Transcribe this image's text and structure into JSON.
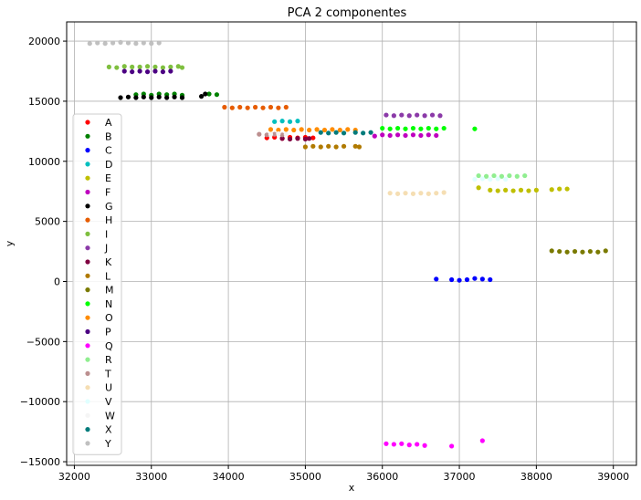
{
  "chart_data": {
    "type": "scatter",
    "title": "PCA 2 componentes",
    "xlabel": "x",
    "ylabel": "y",
    "xlim": [
      31900,
      39300
    ],
    "ylim": [
      -15300,
      21600
    ],
    "xticks": [
      32000,
      33000,
      34000,
      35000,
      36000,
      37000,
      38000,
      39000
    ],
    "yticks": [
      -15000,
      -10000,
      -5000,
      0,
      5000,
      10000,
      15000,
      20000
    ],
    "xtick_labels": [
      "32000",
      "33000",
      "34000",
      "35000",
      "36000",
      "37000",
      "38000",
      "39000"
    ],
    "ytick_labels": [
      "−15000",
      "−10000",
      "−5000",
      "0",
      "5000",
      "10000",
      "15000",
      "20000"
    ],
    "grid": true,
    "legend_position": "left",
    "series": [
      {
        "name": "A",
        "color": "#ff0000",
        "x": [
          34500,
          34600,
          34700,
          34800,
          34900,
          35000,
          35100
        ],
        "y": [
          11950,
          12000,
          11900,
          12000,
          11950,
          12000,
          11950
        ]
      },
      {
        "name": "B",
        "color": "#008000",
        "x": [
          32800,
          32900,
          33000,
          33100,
          33200,
          33300,
          33400,
          33750,
          33850
        ],
        "y": [
          15550,
          15600,
          15500,
          15600,
          15550,
          15600,
          15500,
          15600,
          15550
        ]
      },
      {
        "name": "C",
        "color": "#0000ff",
        "x": [
          36700,
          36900,
          37000,
          37100,
          37200,
          37300,
          37400
        ],
        "y": [
          200,
          150,
          100,
          150,
          250,
          200,
          150
        ]
      },
      {
        "name": "D",
        "color": "#00bfbf",
        "x": [
          34600,
          34700,
          34800,
          34900
        ],
        "y": [
          13300,
          13350,
          13300,
          13350
        ]
      },
      {
        "name": "E",
        "color": "#bfbf00",
        "x": [
          37250,
          37400,
          37500,
          37600,
          37700,
          37800,
          37900,
          38000,
          38200,
          38300,
          38400
        ],
        "y": [
          7800,
          7600,
          7550,
          7600,
          7550,
          7600,
          7550,
          7600,
          7650,
          7700,
          7700
        ]
      },
      {
        "name": "F",
        "color": "#bf00bf",
        "x": [
          35900,
          36000,
          36100,
          36200,
          36300,
          36400,
          36500,
          36600,
          36700
        ],
        "y": [
          12100,
          12200,
          12150,
          12200,
          12150,
          12200,
          12150,
          12200,
          12150
        ]
      },
      {
        "name": "G",
        "color": "#000000",
        "x": [
          32600,
          32700,
          32800,
          32900,
          33000,
          33100,
          33200,
          33300,
          33400,
          33650,
          33700
        ],
        "y": [
          15300,
          15350,
          15300,
          15350,
          15300,
          15350,
          15300,
          15350,
          15300,
          15400,
          15600
        ]
      },
      {
        "name": "H",
        "color": "#e65c00",
        "x": [
          33950,
          34050,
          34150,
          34250,
          34350,
          34450,
          34550,
          34650,
          34750
        ],
        "y": [
          14500,
          14450,
          14500,
          14450,
          14500,
          14450,
          14500,
          14450,
          14500
        ]
      },
      {
        "name": "I",
        "color": "#7fbf3f",
        "x": [
          32450,
          32550,
          32650,
          32750,
          32850,
          32950,
          33050,
          33150,
          33250,
          33350,
          33400
        ],
        "y": [
          17850,
          17800,
          17900,
          17850,
          17850,
          17900,
          17850,
          17800,
          17850,
          17900,
          17800
        ]
      },
      {
        "name": "J",
        "color": "#8b3aa8",
        "x": [
          36050,
          36150,
          36250,
          36350,
          36450,
          36550,
          36650,
          36750
        ],
        "y": [
          13850,
          13800,
          13850,
          13800,
          13850,
          13800,
          13850,
          13800
        ]
      },
      {
        "name": "K",
        "color": "#800040",
        "x": [
          34700,
          34800,
          34900,
          35000,
          35050
        ],
        "y": [
          11900,
          11850,
          11900,
          11850,
          11900
        ]
      },
      {
        "name": "L",
        "color": "#b07a00",
        "x": [
          35000,
          35100,
          35200,
          35300,
          35400,
          35500,
          35650,
          35700
        ],
        "y": [
          11200,
          11250,
          11200,
          11250,
          11200,
          11250,
          11250,
          11200
        ]
      },
      {
        "name": "M",
        "color": "#7a7a00",
        "x": [
          38200,
          38300,
          38400,
          38500,
          38600,
          38700,
          38800,
          38900
        ],
        "y": [
          2550,
          2500,
          2450,
          2500,
          2450,
          2500,
          2450,
          2550
        ]
      },
      {
        "name": "N",
        "color": "#00ff00",
        "x": [
          36000,
          36100,
          36200,
          36300,
          36400,
          36500,
          36600,
          36700,
          36800,
          37200
        ],
        "y": [
          12750,
          12700,
          12750,
          12700,
          12750,
          12700,
          12750,
          12700,
          12750,
          12700
        ]
      },
      {
        "name": "O",
        "color": "#ff8c00",
        "x": [
          34550,
          34650,
          34750,
          34850,
          34950,
          35050,
          35150,
          35250,
          35350,
          35450,
          35550,
          35650
        ],
        "y": [
          12650,
          12600,
          12650,
          12600,
          12650,
          12600,
          12650,
          12600,
          12650,
          12600,
          12650,
          12600
        ]
      },
      {
        "name": "P",
        "color": "#4b0082",
        "x": [
          32650,
          32750,
          32850,
          32950,
          33050,
          33150,
          33250
        ],
        "y": [
          17500,
          17450,
          17500,
          17450,
          17500,
          17450,
          17500
        ]
      },
      {
        "name": "Q",
        "color": "#ff00ff",
        "x": [
          36050,
          36150,
          36250,
          36350,
          36450,
          36550,
          36900,
          37300
        ],
        "y": [
          -13500,
          -13550,
          -13500,
          -13600,
          -13550,
          -13650,
          -13700,
          -13250
        ]
      },
      {
        "name": "R",
        "color": "#90ee90",
        "x": [
          37250,
          37350,
          37450,
          37550,
          37650,
          37750,
          37850
        ],
        "y": [
          8800,
          8750,
          8800,
          8750,
          8800,
          8750,
          8800
        ]
      },
      {
        "name": "T",
        "color": "#bc8f8f",
        "x": [
          34400,
          34500,
          34600,
          34700
        ],
        "y": [
          12250,
          12200,
          12250,
          12200
        ]
      },
      {
        "name": "U",
        "color": "#f5deb3",
        "x": [
          36100,
          36200,
          36300,
          36400,
          36500,
          36600,
          36700,
          36800
        ],
        "y": [
          7350,
          7300,
          7350,
          7300,
          7350,
          7300,
          7350,
          7400
        ]
      },
      {
        "name": "V",
        "color": "#e0ffff",
        "x": [
          37200,
          37300,
          37400,
          37500,
          37600
        ],
        "y": [
          8500,
          8550,
          8500,
          8550,
          8500
        ]
      },
      {
        "name": "W",
        "color": "#f5f5f5",
        "x": [
          34550,
          34650,
          34750
        ],
        "y": [
          12250,
          12300,
          12250
        ]
      },
      {
        "name": "X",
        "color": "#007b7b",
        "x": [
          35200,
          35300,
          35400,
          35500,
          35650,
          35750,
          35850
        ],
        "y": [
          12400,
          12350,
          12400,
          12350,
          12400,
          12350,
          12400
        ]
      },
      {
        "name": "Y",
        "color": "#c0c0c0",
        "x": [
          32200,
          32300,
          32400,
          32500,
          32600,
          32700,
          32800,
          32900,
          33000,
          33100
        ],
        "y": [
          19800,
          19850,
          19800,
          19850,
          19900,
          19850,
          19800,
          19850,
          19800,
          19850
        ]
      }
    ]
  }
}
